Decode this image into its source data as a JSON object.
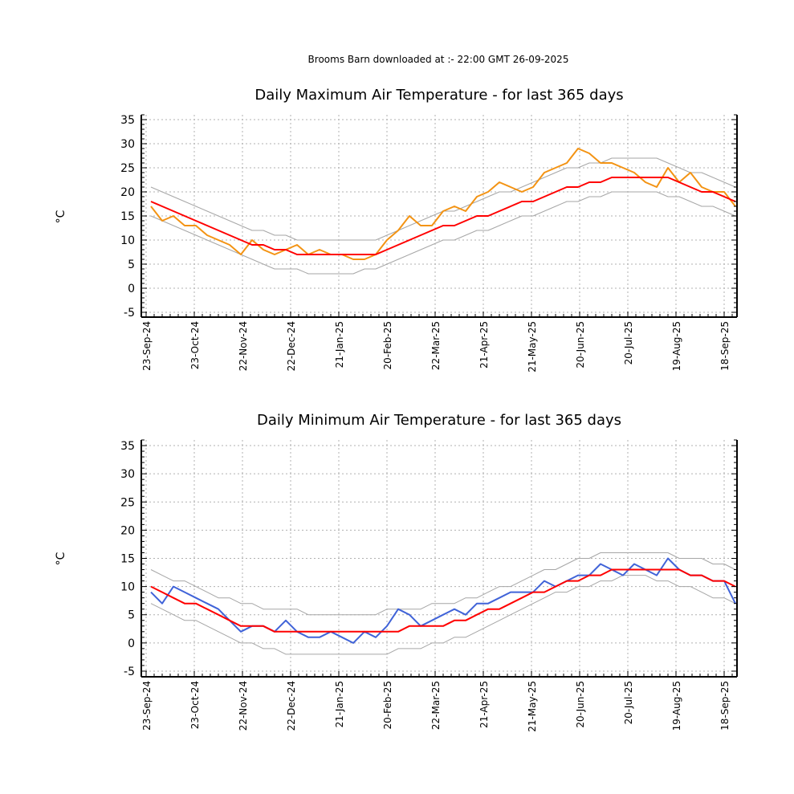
{
  "header": {
    "subtitle": "Brooms Barn downloaded at :- 22:00 GMT 26-09-2025"
  },
  "colors": {
    "mean_line": "#ff0000",
    "range_lines": "#a6a6a6",
    "max_series": "#f39313",
    "min_series": "#4063d8",
    "grid": "#b0b0b0"
  },
  "chart_data": [
    {
      "type": "line",
      "title": "Daily Maximum Air Temperature - for last 365 days",
      "ylabel": "°C",
      "xlabel": "",
      "ylim": [
        -6,
        36
      ],
      "yticks": [
        -5,
        0,
        5,
        10,
        15,
        20,
        25,
        30,
        35
      ],
      "xlim_days": [
        -3,
        368
      ],
      "x_ticks": [
        {
          "label": "23-Sep-24",
          "day": 0
        },
        {
          "label": "23-Oct-24",
          "day": 30
        },
        {
          "label": "22-Nov-24",
          "day": 60
        },
        {
          "label": "22-Dec-24",
          "day": 90
        },
        {
          "label": "21-Jan-25",
          "day": 120
        },
        {
          "label": "20-Feb-25",
          "day": 150
        },
        {
          "label": "22-Mar-25",
          "day": 180
        },
        {
          "label": "21-Apr-25",
          "day": 210
        },
        {
          "label": "21-May-25",
          "day": 240
        },
        {
          "label": "20-Jun-25",
          "day": 270
        },
        {
          "label": "20-Jul-25",
          "day": 300
        },
        {
          "label": "19-Aug-25",
          "day": 330
        },
        {
          "label": "18-Sep-25",
          "day": 360
        }
      ],
      "grid": true,
      "series": [
        {
          "role": "daily",
          "color": "#f39313",
          "x_day": [
            3,
            10,
            17,
            24,
            31,
            38,
            45,
            52,
            59,
            66,
            73,
            80,
            87,
            94,
            101,
            108,
            115,
            122,
            129,
            136,
            143,
            150,
            157,
            164,
            171,
            178,
            185,
            192,
            199,
            206,
            213,
            220,
            227,
            234,
            241,
            248,
            255,
            262,
            269,
            276,
            283,
            290,
            297,
            304,
            311,
            318,
            325,
            332,
            339,
            346,
            353,
            360,
            367
          ],
          "y": [
            17,
            14,
            15,
            13,
            13,
            11,
            10,
            9,
            7,
            10,
            8,
            7,
            8,
            9,
            7,
            8,
            7,
            7,
            6,
            6,
            7,
            10,
            12,
            15,
            13,
            13,
            16,
            17,
            16,
            19,
            20,
            22,
            21,
            20,
            21,
            24,
            25,
            26,
            29,
            28,
            26,
            26,
            25,
            24,
            22,
            21,
            25,
            22,
            24,
            21,
            20,
            20,
            17
          ]
        },
        {
          "role": "mean",
          "color": "#ff0000",
          "x_day": [
            3,
            10,
            17,
            24,
            31,
            38,
            45,
            52,
            59,
            66,
            73,
            80,
            87,
            94,
            101,
            108,
            115,
            122,
            129,
            136,
            143,
            150,
            157,
            164,
            171,
            178,
            185,
            192,
            199,
            206,
            213,
            220,
            227,
            234,
            241,
            248,
            255,
            262,
            269,
            276,
            283,
            290,
            297,
            304,
            311,
            318,
            325,
            332,
            339,
            346,
            353,
            360,
            367
          ],
          "y": [
            18,
            17,
            16,
            15,
            14,
            13,
            12,
            11,
            10,
            9,
            9,
            8,
            8,
            7,
            7,
            7,
            7,
            7,
            7,
            7,
            7,
            8,
            9,
            10,
            11,
            12,
            13,
            13,
            14,
            15,
            15,
            16,
            17,
            18,
            18,
            19,
            20,
            21,
            21,
            22,
            22,
            23,
            23,
            23,
            23,
            23,
            23,
            22,
            21,
            20,
            20,
            19,
            18
          ]
        },
        {
          "role": "upper",
          "color": "#a6a6a6",
          "x_day": [
            3,
            10,
            17,
            24,
            31,
            38,
            45,
            52,
            59,
            66,
            73,
            80,
            87,
            94,
            101,
            108,
            115,
            122,
            129,
            136,
            143,
            150,
            157,
            164,
            171,
            178,
            185,
            192,
            199,
            206,
            213,
            220,
            227,
            234,
            241,
            248,
            255,
            262,
            269,
            276,
            283,
            290,
            297,
            304,
            311,
            318,
            325,
            332,
            339,
            346,
            353,
            360,
            367
          ],
          "y": [
            21,
            20,
            19,
            18,
            17,
            16,
            15,
            14,
            13,
            12,
            12,
            11,
            11,
            10,
            10,
            10,
            10,
            10,
            10,
            10,
            10,
            11,
            12,
            13,
            14,
            15,
            16,
            16,
            17,
            18,
            19,
            20,
            20,
            21,
            22,
            23,
            24,
            25,
            25,
            26,
            26,
            27,
            27,
            27,
            27,
            27,
            26,
            25,
            24,
            24,
            23,
            22,
            21
          ]
        },
        {
          "role": "lower",
          "color": "#a6a6a6",
          "x_day": [
            3,
            10,
            17,
            24,
            31,
            38,
            45,
            52,
            59,
            66,
            73,
            80,
            87,
            94,
            101,
            108,
            115,
            122,
            129,
            136,
            143,
            150,
            157,
            164,
            171,
            178,
            185,
            192,
            199,
            206,
            213,
            220,
            227,
            234,
            241,
            248,
            255,
            262,
            269,
            276,
            283,
            290,
            297,
            304,
            311,
            318,
            325,
            332,
            339,
            346,
            353,
            360,
            367
          ],
          "y": [
            15,
            14,
            13,
            12,
            11,
            10,
            9,
            8,
            7,
            6,
            5,
            4,
            4,
            4,
            3,
            3,
            3,
            3,
            3,
            4,
            4,
            5,
            6,
            7,
            8,
            9,
            10,
            10,
            11,
            12,
            12,
            13,
            14,
            15,
            15,
            16,
            17,
            18,
            18,
            19,
            19,
            20,
            20,
            20,
            20,
            20,
            19,
            19,
            18,
            17,
            17,
            16,
            15
          ]
        }
      ]
    },
    {
      "type": "line",
      "title": "Daily Minimum Air Temperature - for last 365 days",
      "ylabel": "°C",
      "xlabel": "",
      "ylim": [
        -6,
        36
      ],
      "yticks": [
        -5,
        0,
        5,
        10,
        15,
        20,
        25,
        30,
        35
      ],
      "xlim_days": [
        -3,
        368
      ],
      "x_ticks": [
        {
          "label": "23-Sep-24",
          "day": 0
        },
        {
          "label": "23-Oct-24",
          "day": 30
        },
        {
          "label": "22-Nov-24",
          "day": 60
        },
        {
          "label": "22-Dec-24",
          "day": 90
        },
        {
          "label": "21-Jan-25",
          "day": 120
        },
        {
          "label": "20-Feb-25",
          "day": 150
        },
        {
          "label": "22-Mar-25",
          "day": 180
        },
        {
          "label": "21-Apr-25",
          "day": 210
        },
        {
          "label": "21-May-25",
          "day": 240
        },
        {
          "label": "20-Jun-25",
          "day": 270
        },
        {
          "label": "20-Jul-25",
          "day": 300
        },
        {
          "label": "19-Aug-25",
          "day": 330
        },
        {
          "label": "18-Sep-25",
          "day": 360
        }
      ],
      "grid": true,
      "series": [
        {
          "role": "daily",
          "color": "#4063d8",
          "x_day": [
            3,
            10,
            17,
            24,
            31,
            38,
            45,
            52,
            59,
            66,
            73,
            80,
            87,
            94,
            101,
            108,
            115,
            122,
            129,
            136,
            143,
            150,
            157,
            164,
            171,
            178,
            185,
            192,
            199,
            206,
            213,
            220,
            227,
            234,
            241,
            248,
            255,
            262,
            269,
            276,
            283,
            290,
            297,
            304,
            311,
            318,
            325,
            332,
            339,
            346,
            353,
            360,
            367
          ],
          "y": [
            9,
            7,
            10,
            9,
            8,
            7,
            6,
            4,
            2,
            3,
            3,
            2,
            4,
            2,
            1,
            1,
            2,
            1,
            0,
            2,
            1,
            3,
            6,
            5,
            3,
            4,
            5,
            6,
            5,
            7,
            7,
            8,
            9,
            9,
            9,
            11,
            10,
            11,
            12,
            12,
            14,
            13,
            12,
            14,
            13,
            12,
            15,
            13,
            12,
            12,
            11,
            11,
            7
          ]
        },
        {
          "role": "mean",
          "color": "#ff0000",
          "x_day": [
            3,
            10,
            17,
            24,
            31,
            38,
            45,
            52,
            59,
            66,
            73,
            80,
            87,
            94,
            101,
            108,
            115,
            122,
            129,
            136,
            143,
            150,
            157,
            164,
            171,
            178,
            185,
            192,
            199,
            206,
            213,
            220,
            227,
            234,
            241,
            248,
            255,
            262,
            269,
            276,
            283,
            290,
            297,
            304,
            311,
            318,
            325,
            332,
            339,
            346,
            353,
            360,
            367
          ],
          "y": [
            10,
            9,
            8,
            7,
            7,
            6,
            5,
            4,
            3,
            3,
            3,
            2,
            2,
            2,
            2,
            2,
            2,
            2,
            2,
            2,
            2,
            2,
            2,
            3,
            3,
            3,
            3,
            4,
            4,
            5,
            6,
            6,
            7,
            8,
            9,
            9,
            10,
            11,
            11,
            12,
            12,
            13,
            13,
            13,
            13,
            13,
            13,
            13,
            12,
            12,
            11,
            11,
            10
          ]
        },
        {
          "role": "upper",
          "color": "#a6a6a6",
          "x_day": [
            3,
            10,
            17,
            24,
            31,
            38,
            45,
            52,
            59,
            66,
            73,
            80,
            87,
            94,
            101,
            108,
            115,
            122,
            129,
            136,
            143,
            150,
            157,
            164,
            171,
            178,
            185,
            192,
            199,
            206,
            213,
            220,
            227,
            234,
            241,
            248,
            255,
            262,
            269,
            276,
            283,
            290,
            297,
            304,
            311,
            318,
            325,
            332,
            339,
            346,
            353,
            360,
            367
          ],
          "y": [
            13,
            12,
            11,
            11,
            10,
            9,
            8,
            8,
            7,
            7,
            6,
            6,
            6,
            6,
            5,
            5,
            5,
            5,
            5,
            5,
            5,
            6,
            6,
            6,
            6,
            7,
            7,
            7,
            8,
            8,
            9,
            10,
            10,
            11,
            12,
            13,
            13,
            14,
            15,
            15,
            16,
            16,
            16,
            16,
            16,
            16,
            16,
            15,
            15,
            15,
            14,
            14,
            13
          ]
        },
        {
          "role": "lower",
          "color": "#a6a6a6",
          "x_day": [
            3,
            10,
            17,
            24,
            31,
            38,
            45,
            52,
            59,
            66,
            73,
            80,
            87,
            94,
            101,
            108,
            115,
            122,
            129,
            136,
            143,
            150,
            157,
            164,
            171,
            178,
            185,
            192,
            199,
            206,
            213,
            220,
            227,
            234,
            241,
            248,
            255,
            262,
            269,
            276,
            283,
            290,
            297,
            304,
            311,
            318,
            325,
            332,
            339,
            346,
            353,
            360,
            367
          ],
          "y": [
            7,
            6,
            5,
            4,
            4,
            3,
            2,
            1,
            0,
            0,
            -1,
            -1,
            -2,
            -2,
            -2,
            -2,
            -2,
            -2,
            -2,
            -2,
            -2,
            -2,
            -1,
            -1,
            -1,
            0,
            0,
            1,
            1,
            2,
            3,
            4,
            5,
            6,
            7,
            8,
            9,
            9,
            10,
            10,
            11,
            11,
            12,
            12,
            12,
            11,
            11,
            10,
            10,
            9,
            8,
            8,
            7
          ]
        }
      ]
    }
  ]
}
